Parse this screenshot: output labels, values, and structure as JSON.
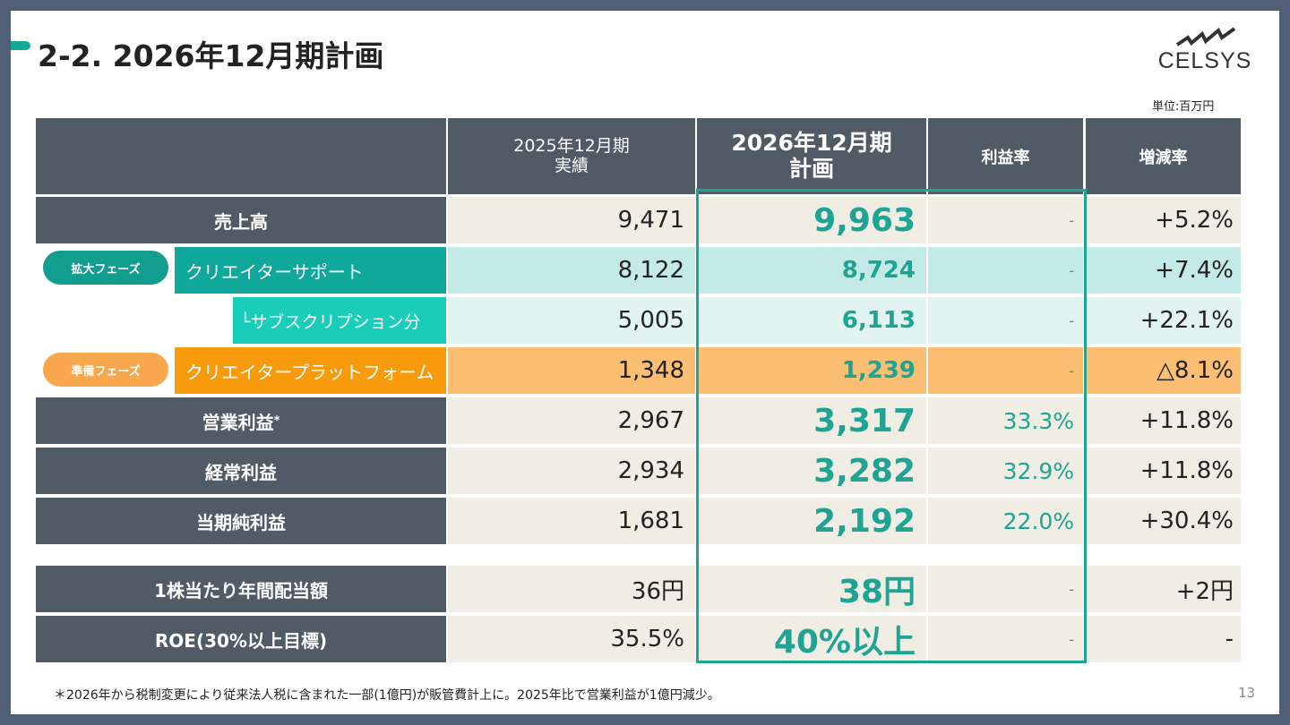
{
  "title": "2-2. 2026年12月期計画",
  "logo": "CELSYS",
  "unit": "単位:百万円",
  "headers": {
    "prev": "2025年12月期\n実績",
    "plan_line1": "2026年12月期",
    "plan_line2": "計画",
    "margin": "利益率",
    "change": "増減率"
  },
  "phases": {
    "expand": "拡大フェーズ",
    "prepare": "準備フェーズ"
  },
  "rows": [
    {
      "label": "売上高",
      "prev": "9,471",
      "plan": "9,963",
      "margin": "-",
      "change": "+5.2%"
    },
    {
      "label": "クリエイターサポート",
      "prev": "8,122",
      "plan": "8,724",
      "margin": "-",
      "change": "+7.4%"
    },
    {
      "label": "└サブスクリプション分",
      "prev": "5,005",
      "plan": "6,113",
      "margin": "-",
      "change": "+22.1%"
    },
    {
      "label": "クリエイタープラットフォーム",
      "prev": "1,348",
      "plan": "1,239",
      "margin": "-",
      "change": "△8.1%"
    },
    {
      "label": "営業利益",
      "note": "*",
      "prev": "2,967",
      "plan": "3,317",
      "margin": "33.3%",
      "change": "+11.8%"
    },
    {
      "label": "経常利益",
      "prev": "2,934",
      "plan": "3,282",
      "margin": "32.9%",
      "change": "+11.8%"
    },
    {
      "label": "当期純利益",
      "prev": "1,681",
      "plan": "2,192",
      "margin": "22.0%",
      "change": "+30.4%"
    },
    {
      "label": "1株当たり年間配当額",
      "prev": "36円",
      "plan": "38円",
      "margin": "-",
      "change": "+2円"
    },
    {
      "label": "ROE(30%以上目標)",
      "prev": "35.5%",
      "plan": "40%以上",
      "margin": "-",
      "change": "-"
    }
  ],
  "footnote": "＊2026年から税制変更により従来法人税に含まれた一部(1億円)が販管費計上に。2025年比で営業利益が1億円減少。",
  "page": "13",
  "colors": {
    "header": "#505b66",
    "accent": "#1fa392",
    "orange": "#f79a0c"
  }
}
